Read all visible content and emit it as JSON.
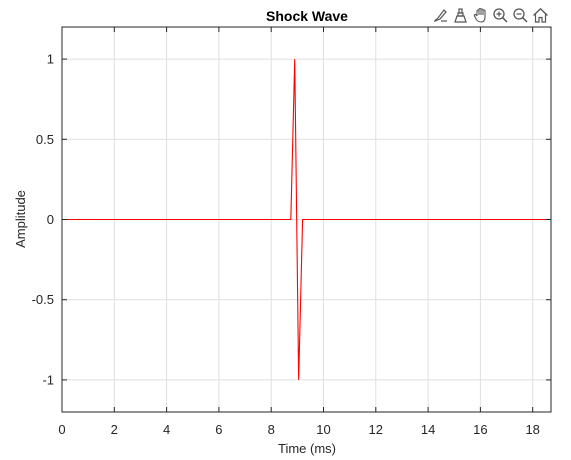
{
  "chart_data": {
    "type": "line",
    "title": "Shock Wave",
    "xlabel": "Time (ms)",
    "ylabel": "Amplitude",
    "xlim": [
      0,
      18.7
    ],
    "ylim": [
      -1.2,
      1.2
    ],
    "xticks": [
      0,
      2,
      4,
      6,
      8,
      10,
      12,
      14,
      16,
      18
    ],
    "xtick_labels": [
      "0",
      "2",
      "4",
      "6",
      "8",
      "10",
      "12",
      "14",
      "16",
      "18"
    ],
    "yticks": [
      -1,
      -0.5,
      0,
      0.5,
      1
    ],
    "ytick_labels": [
      "-1",
      "-0.5",
      "0",
      "0.5",
      "1"
    ],
    "grid": true,
    "series": [
      {
        "color": "#ff0000",
        "x": [
          0,
          8.75,
          8.9,
          9.05,
          9.2,
          9.35,
          18.7
        ],
        "y": [
          0,
          0,
          1,
          -1,
          0,
          0,
          0
        ]
      }
    ]
  },
  "toolbar": {
    "buttons": [
      {
        "icon": "brush-icon",
        "name": "brush-button"
      },
      {
        "icon": "datatip-icon",
        "name": "data-tips-button"
      },
      {
        "icon": "pan-hand-icon",
        "name": "pan-button"
      },
      {
        "icon": "zoom-in-icon",
        "name": "zoom-in-button"
      },
      {
        "icon": "zoom-out-icon",
        "name": "zoom-out-button"
      },
      {
        "icon": "home-icon",
        "name": "restore-view-button"
      }
    ]
  }
}
